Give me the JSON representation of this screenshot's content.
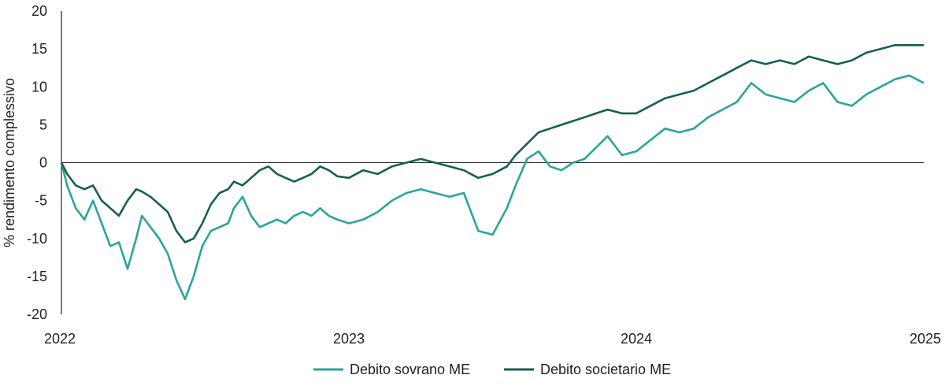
{
  "chart_data": {
    "type": "line",
    "title": "",
    "xlabel": "",
    "ylabel": "% rendimento complessivo",
    "ylim": [
      -20,
      20
    ],
    "yticks": [
      20,
      15,
      10,
      5,
      0,
      -5,
      -10,
      -15,
      -20
    ],
    "xlim": [
      2022.0,
      2025.0
    ],
    "xticks": [
      {
        "value": 2022,
        "label": "2022"
      },
      {
        "value": 2023,
        "label": "2023"
      },
      {
        "value": 2024,
        "label": "2024"
      },
      {
        "value": 2025,
        "label": "2025"
      }
    ],
    "legend_position": "bottom-center",
    "series": [
      {
        "name": "Debito sovrano ME",
        "color": "#2aa59a",
        "x": [
          2022.0,
          2022.02,
          2022.05,
          2022.08,
          2022.11,
          2022.14,
          2022.17,
          2022.2,
          2022.23,
          2022.26,
          2022.28,
          2022.31,
          2022.34,
          2022.37,
          2022.4,
          2022.43,
          2022.46,
          2022.49,
          2022.52,
          2022.55,
          2022.58,
          2022.6,
          2022.63,
          2022.66,
          2022.69,
          2022.72,
          2022.75,
          2022.78,
          2022.81,
          2022.84,
          2022.87,
          2022.9,
          2022.93,
          2022.96,
          2023.0,
          2023.05,
          2023.1,
          2023.15,
          2023.2,
          2023.25,
          2023.3,
          2023.35,
          2023.4,
          2023.45,
          2023.5,
          2023.55,
          2023.58,
          2023.62,
          2023.66,
          2023.7,
          2023.74,
          2023.78,
          2023.82,
          2023.86,
          2023.9,
          2023.95,
          2024.0,
          2024.05,
          2024.1,
          2024.15,
          2024.2,
          2024.25,
          2024.3,
          2024.35,
          2024.4,
          2024.45,
          2024.5,
          2024.55,
          2024.6,
          2024.65,
          2024.7,
          2024.75,
          2024.8,
          2024.85,
          2024.9,
          2024.95,
          2025.0
        ],
        "values": [
          0.0,
          -3.0,
          -6.0,
          -7.5,
          -5.0,
          -8.0,
          -11.0,
          -10.5,
          -14.0,
          -10.0,
          -7.0,
          -8.5,
          -10.0,
          -12.0,
          -15.5,
          -18.0,
          -15.0,
          -11.0,
          -9.0,
          -8.5,
          -8.0,
          -6.0,
          -4.5,
          -7.0,
          -8.5,
          -8.0,
          -7.5,
          -8.0,
          -7.0,
          -6.5,
          -7.0,
          -6.0,
          -7.0,
          -7.5,
          -8.0,
          -7.5,
          -6.5,
          -5.0,
          -4.0,
          -3.5,
          -4.0,
          -4.5,
          -4.0,
          -9.0,
          -9.5,
          -6.0,
          -3.0,
          0.5,
          1.5,
          -0.5,
          -1.0,
          0.0,
          0.5,
          2.0,
          3.5,
          1.0,
          1.5,
          3.0,
          4.5,
          4.0,
          4.5,
          6.0,
          7.0,
          8.0,
          10.5,
          9.0,
          8.5,
          8.0,
          9.5,
          10.5,
          8.0,
          7.5,
          9.0,
          10.0,
          11.0,
          11.5,
          10.5
        ]
      },
      {
        "name": "Debito societario ME",
        "color": "#175e54",
        "x": [
          2022.0,
          2022.02,
          2022.05,
          2022.08,
          2022.11,
          2022.14,
          2022.17,
          2022.2,
          2022.23,
          2022.26,
          2022.28,
          2022.31,
          2022.34,
          2022.37,
          2022.4,
          2022.43,
          2022.46,
          2022.49,
          2022.52,
          2022.55,
          2022.58,
          2022.6,
          2022.63,
          2022.66,
          2022.69,
          2022.72,
          2022.75,
          2022.78,
          2022.81,
          2022.84,
          2022.87,
          2022.9,
          2022.93,
          2022.96,
          2023.0,
          2023.05,
          2023.1,
          2023.15,
          2023.2,
          2023.25,
          2023.3,
          2023.35,
          2023.4,
          2023.45,
          2023.5,
          2023.55,
          2023.58,
          2023.62,
          2023.66,
          2023.7,
          2023.74,
          2023.78,
          2023.82,
          2023.86,
          2023.9,
          2023.95,
          2024.0,
          2024.05,
          2024.1,
          2024.15,
          2024.2,
          2024.25,
          2024.3,
          2024.35,
          2024.4,
          2024.45,
          2024.5,
          2024.55,
          2024.6,
          2024.65,
          2024.7,
          2024.75,
          2024.8,
          2024.85,
          2024.9,
          2024.95,
          2025.0
        ],
        "values": [
          0.0,
          -1.5,
          -3.0,
          -3.5,
          -3.0,
          -5.0,
          -6.0,
          -7.0,
          -5.0,
          -3.5,
          -3.8,
          -4.5,
          -5.5,
          -6.5,
          -9.0,
          -10.5,
          -10.0,
          -8.0,
          -5.5,
          -4.0,
          -3.5,
          -2.5,
          -3.0,
          -2.0,
          -1.0,
          -0.5,
          -1.5,
          -2.0,
          -2.5,
          -2.0,
          -1.5,
          -0.5,
          -1.0,
          -1.8,
          -2.0,
          -1.0,
          -1.5,
          -0.5,
          0.0,
          0.5,
          0.0,
          -0.5,
          -1.0,
          -2.0,
          -1.5,
          -0.5,
          1.0,
          2.5,
          4.0,
          4.5,
          5.0,
          5.5,
          6.0,
          6.5,
          7.0,
          6.5,
          6.5,
          7.5,
          8.5,
          9.0,
          9.5,
          10.5,
          11.5,
          12.5,
          13.5,
          13.0,
          13.5,
          13.0,
          14.0,
          13.5,
          13.0,
          13.5,
          14.5,
          15.0,
          15.5,
          15.5,
          15.5
        ]
      }
    ]
  }
}
